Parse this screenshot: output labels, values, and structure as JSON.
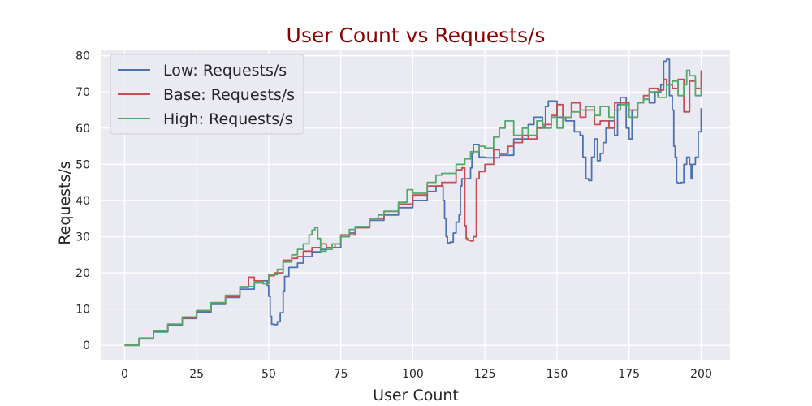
{
  "chart_data": {
    "type": "line",
    "title": "User Count vs Requests/s",
    "xlabel": "User Count",
    "ylabel": "Requests/s",
    "xlim": [
      -8,
      210
    ],
    "ylim": [
      -4,
      81.5
    ],
    "xticks": [
      0,
      25,
      50,
      75,
      100,
      125,
      150,
      175,
      200
    ],
    "yticks": [
      0,
      10,
      20,
      30,
      40,
      50,
      60,
      70,
      80
    ],
    "grid": true,
    "legend_position": "top-left",
    "colors": {
      "title": "#8b0000",
      "plot_background": "#eaeaf2",
      "grid": "#ffffff",
      "low": "#4c72b0",
      "base": "#c44e52",
      "high": "#55a868"
    },
    "series": [
      {
        "name": "Low: Requests/s",
        "color": "#4c72b0",
        "points": [
          [
            0,
            0
          ],
          [
            5,
            1.8
          ],
          [
            10,
            3.7
          ],
          [
            15,
            5.6
          ],
          [
            20,
            7.4
          ],
          [
            25,
            9.2
          ],
          [
            30,
            11.3
          ],
          [
            35,
            13.2
          ],
          [
            40,
            15.5
          ],
          [
            45,
            17.2
          ],
          [
            48,
            17.8
          ],
          [
            49.5,
            16.5
          ],
          [
            50,
            13.5
          ],
          [
            50.5,
            8
          ],
          [
            51,
            5.8
          ],
          [
            52,
            5.7
          ],
          [
            53,
            6.5
          ],
          [
            54,
            9
          ],
          [
            55,
            15
          ],
          [
            55.5,
            19
          ],
          [
            57,
            21.5
          ],
          [
            60,
            22.7
          ],
          [
            62,
            24.5
          ],
          [
            65,
            25.8
          ],
          [
            68,
            26.5
          ],
          [
            70,
            27
          ],
          [
            75,
            30
          ],
          [
            78,
            31
          ],
          [
            80,
            32.5
          ],
          [
            85,
            34.5
          ],
          [
            90,
            36
          ],
          [
            95,
            38
          ],
          [
            100,
            40
          ],
          [
            105,
            42.5
          ],
          [
            108,
            44
          ],
          [
            110,
            44
          ],
          [
            110.5,
            40
          ],
          [
            111,
            35
          ],
          [
            111.5,
            30
          ],
          [
            112,
            28.3
          ],
          [
            113,
            28.5
          ],
          [
            114,
            31
          ],
          [
            115,
            34
          ],
          [
            116,
            36
          ],
          [
            116.5,
            44
          ],
          [
            117,
            46
          ],
          [
            120,
            49
          ],
          [
            120.5,
            53
          ],
          [
            121,
            55.5
          ],
          [
            123,
            52
          ],
          [
            125,
            51.8
          ],
          [
            130,
            52.5
          ],
          [
            135,
            57
          ],
          [
            140,
            61
          ],
          [
            142,
            63
          ],
          [
            145,
            60.5
          ],
          [
            146,
            66
          ],
          [
            147,
            67.5
          ],
          [
            150,
            63
          ],
          [
            153,
            62
          ],
          [
            156,
            59
          ],
          [
            158,
            58
          ],
          [
            159,
            52
          ],
          [
            160,
            46
          ],
          [
            161,
            45.5
          ],
          [
            162,
            52
          ],
          [
            163,
            57
          ],
          [
            164,
            51
          ],
          [
            165,
            53
          ],
          [
            166,
            56
          ],
          [
            167,
            60
          ],
          [
            168,
            62
          ],
          [
            170,
            58
          ],
          [
            171,
            66.5
          ],
          [
            172,
            68.5
          ],
          [
            174,
            60
          ],
          [
            175,
            57
          ],
          [
            176,
            65
          ],
          [
            178,
            67
          ],
          [
            180,
            68
          ],
          [
            182,
            67
          ],
          [
            184,
            70
          ],
          [
            186,
            72
          ],
          [
            187,
            78.5
          ],
          [
            188,
            79
          ],
          [
            189,
            69
          ],
          [
            190,
            65
          ],
          [
            190.5,
            55
          ],
          [
            191,
            52
          ],
          [
            191.5,
            45
          ],
          [
            192,
            44.8
          ],
          [
            193,
            45
          ],
          [
            194,
            50
          ],
          [
            195,
            52
          ],
          [
            196,
            50
          ],
          [
            196.5,
            46
          ],
          [
            197,
            50
          ],
          [
            198,
            52
          ],
          [
            199,
            59
          ],
          [
            200,
            65.5
          ]
        ]
      },
      {
        "name": "Base: Requests/s",
        "color": "#c44e52",
        "points": [
          [
            0,
            0
          ],
          [
            5,
            1.9
          ],
          [
            10,
            3.8
          ],
          [
            15,
            5.8
          ],
          [
            20,
            7.6
          ],
          [
            25,
            9.5
          ],
          [
            30,
            11.5
          ],
          [
            35,
            13.5
          ],
          [
            40,
            16
          ],
          [
            43,
            18.8
          ],
          [
            45,
            17.8
          ],
          [
            48,
            17
          ],
          [
            50,
            19.2
          ],
          [
            52,
            20
          ],
          [
            55,
            23.5
          ],
          [
            58,
            24
          ],
          [
            60,
            24.5
          ],
          [
            62,
            26
          ],
          [
            65,
            27
          ],
          [
            68,
            28
          ],
          [
            70,
            27
          ],
          [
            73,
            28
          ],
          [
            75,
            30.5
          ],
          [
            80,
            32.5
          ],
          [
            85,
            35
          ],
          [
            90,
            37
          ],
          [
            95,
            39
          ],
          [
            100,
            41.5
          ],
          [
            105,
            44
          ],
          [
            110,
            45
          ],
          [
            115,
            48.5
          ],
          [
            117,
            49
          ],
          [
            118,
            33
          ],
          [
            118.5,
            29.5
          ],
          [
            119,
            29
          ],
          [
            120,
            28.8
          ],
          [
            121,
            30
          ],
          [
            122,
            46
          ],
          [
            123,
            48
          ],
          [
            125,
            50
          ],
          [
            128,
            54
          ],
          [
            130,
            53
          ],
          [
            133,
            55
          ],
          [
            135,
            56
          ],
          [
            138,
            58
          ],
          [
            140,
            57
          ],
          [
            143,
            60
          ],
          [
            145,
            61
          ],
          [
            148,
            63.5
          ],
          [
            150,
            66.5
          ],
          [
            152,
            63
          ],
          [
            155,
            67
          ],
          [
            158,
            63
          ],
          [
            160,
            65
          ],
          [
            163,
            61
          ],
          [
            165,
            62
          ],
          [
            168,
            60
          ],
          [
            170,
            67
          ],
          [
            172,
            67
          ],
          [
            175,
            65
          ],
          [
            178,
            67
          ],
          [
            180,
            69
          ],
          [
            182,
            71
          ],
          [
            185,
            70.5
          ],
          [
            187,
            73.5
          ],
          [
            188,
            72
          ],
          [
            190,
            71
          ],
          [
            192,
            73.5
          ],
          [
            194,
            64.5
          ],
          [
            196,
            73
          ],
          [
            198,
            71
          ],
          [
            200,
            76
          ]
        ]
      },
      {
        "name": "High: Requests/s",
        "color": "#55a868",
        "points": [
          [
            0,
            0
          ],
          [
            5,
            2
          ],
          [
            10,
            4
          ],
          [
            15,
            5.8
          ],
          [
            20,
            7.8
          ],
          [
            25,
            9.6
          ],
          [
            30,
            11.8
          ],
          [
            35,
            13.8
          ],
          [
            40,
            16.2
          ],
          [
            45,
            17.5
          ],
          [
            48,
            17
          ],
          [
            50,
            19.5
          ],
          [
            53,
            21
          ],
          [
            55,
            23
          ],
          [
            58,
            25
          ],
          [
            60,
            26.5
          ],
          [
            62,
            28
          ],
          [
            64,
            30.5
          ],
          [
            65,
            31.8
          ],
          [
            66,
            32.5
          ],
          [
            67,
            29.5
          ],
          [
            68,
            26
          ],
          [
            70,
            26.5
          ],
          [
            72,
            28
          ],
          [
            75,
            30
          ],
          [
            78,
            32
          ],
          [
            80,
            32.8
          ],
          [
            85,
            35
          ],
          [
            88,
            36
          ],
          [
            90,
            37
          ],
          [
            95,
            39.5
          ],
          [
            98,
            43
          ],
          [
            100,
            42
          ],
          [
            105,
            45
          ],
          [
            108,
            47
          ],
          [
            110,
            47.5
          ],
          [
            115,
            50
          ],
          [
            118,
            51.5
          ],
          [
            120,
            53.5
          ],
          [
            123,
            55
          ],
          [
            125,
            54.5
          ],
          [
            128,
            57.5
          ],
          [
            130,
            60
          ],
          [
            132,
            62
          ],
          [
            135,
            58
          ],
          [
            138,
            60
          ],
          [
            140,
            58
          ],
          [
            143,
            62
          ],
          [
            145,
            60
          ],
          [
            148,
            63
          ],
          [
            150,
            60
          ],
          [
            152,
            63
          ],
          [
            155,
            64.5
          ],
          [
            158,
            65
          ],
          [
            160,
            66
          ],
          [
            163,
            63.5
          ],
          [
            165,
            66
          ],
          [
            168,
            63
          ],
          [
            170,
            65
          ],
          [
            172,
            66.5
          ],
          [
            175,
            63
          ],
          [
            178,
            67
          ],
          [
            180,
            68
          ],
          [
            182,
            70
          ],
          [
            185,
            68.5
          ],
          [
            188,
            72
          ],
          [
            190,
            73
          ],
          [
            192,
            69
          ],
          [
            194,
            72
          ],
          [
            195,
            76
          ],
          [
            196,
            74.5
          ],
          [
            198,
            69
          ],
          [
            200,
            71.5
          ]
        ]
      }
    ]
  }
}
